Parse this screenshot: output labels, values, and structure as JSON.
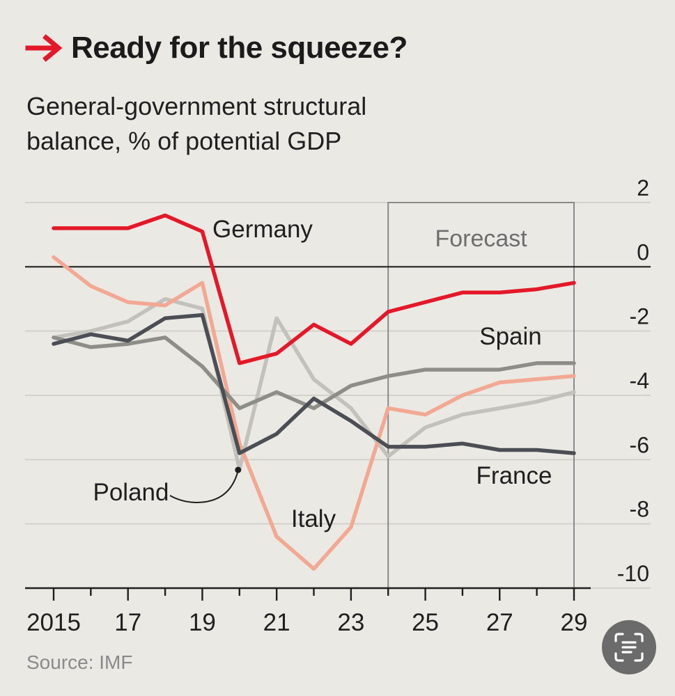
{
  "header": {
    "title": "Ready for the squeeze?",
    "subtitle": "General-government structural balance, % of potential GDP"
  },
  "footer": {
    "source": "Source: IMF"
  },
  "icons": {
    "arrow": "right-arrow-icon",
    "scan": "scan-text-icon"
  },
  "colors": {
    "background": "#ebe9e3",
    "grid": "#d4d1ca",
    "zero_line": "#222222",
    "forecast_box": "#8a8a8a",
    "Germany": "#e3192a",
    "Italy": "#f2a892",
    "Spain": "#8e8e88",
    "Poland": "#c3c1bb",
    "France": "#4b4f55"
  },
  "chart_data": {
    "type": "line",
    "title": "Ready for the squeeze?",
    "subtitle": "General-government structural balance, % of potential GDP",
    "x": [
      2015,
      2016,
      2017,
      2018,
      2019,
      2020,
      2021,
      2022,
      2023,
      2024,
      2025,
      2026,
      2027,
      2028,
      2029
    ],
    "x_tick_values": [
      2015,
      2017,
      2019,
      2021,
      2023,
      2025,
      2027,
      2029
    ],
    "x_tick_labels": [
      "2015",
      "17",
      "19",
      "21",
      "23",
      "25",
      "27",
      "29"
    ],
    "y_ticks": [
      2,
      0,
      -2,
      -4,
      -6,
      -8,
      -10
    ],
    "y_tick_labels": [
      "2",
      "0",
      "-2",
      "-4",
      "-6",
      "-8",
      "-10"
    ],
    "ylim": [
      -10,
      2
    ],
    "xlim": [
      2015,
      2029
    ],
    "y_axis_position": "right",
    "forecast": {
      "label": "Forecast",
      "start": 2024,
      "end": 2029
    },
    "series": [
      {
        "name": "Poland",
        "label": "Poland",
        "values": [
          -2.2,
          -2.0,
          -1.7,
          -1.0,
          -1.3,
          -6.3,
          -1.6,
          -3.5,
          -4.4,
          -5.9,
          -5.0,
          -4.6,
          -4.4,
          -4.2,
          -3.9
        ]
      },
      {
        "name": "Italy",
        "label": "Italy",
        "values": [
          0.3,
          -0.6,
          -1.1,
          -1.2,
          -0.5,
          -5.5,
          -8.4,
          -9.4,
          -8.1,
          -4.4,
          -4.6,
          -4.0,
          -3.6,
          -3.5,
          -3.4
        ]
      },
      {
        "name": "Spain",
        "label": "Spain",
        "values": [
          -2.2,
          -2.5,
          -2.4,
          -2.2,
          -3.1,
          -4.4,
          -3.9,
          -4.4,
          -3.7,
          -3.4,
          -3.2,
          -3.2,
          -3.2,
          -3.0,
          -3.0
        ]
      },
      {
        "name": "France",
        "label": "France",
        "values": [
          -2.4,
          -2.1,
          -2.3,
          -1.6,
          -1.5,
          -5.8,
          -5.2,
          -4.1,
          -4.8,
          -5.6,
          -5.6,
          -5.5,
          -5.7,
          -5.7,
          -5.8
        ]
      },
      {
        "name": "Germany",
        "label": "Germany",
        "values": [
          1.2,
          1.2,
          1.2,
          1.6,
          1.1,
          -3.0,
          -2.7,
          -1.8,
          -2.4,
          -1.4,
          -1.1,
          -0.8,
          -0.8,
          -0.7,
          -0.5
        ]
      }
    ]
  }
}
